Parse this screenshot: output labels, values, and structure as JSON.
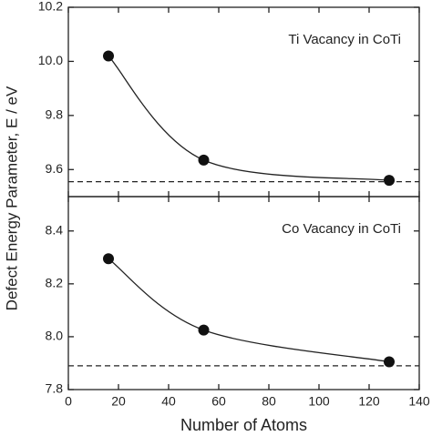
{
  "chart_data": [
    {
      "type": "scatter",
      "annotation": "Ti Vacancy in CoTi",
      "ylabel": "Defect Energy Parameter, E / eV",
      "x": [
        16,
        54,
        128
      ],
      "values": [
        10.02,
        9.635,
        9.56
      ],
      "color": "#111111",
      "asymptote": 9.555,
      "xlim": [
        0,
        140
      ],
      "xticks": [
        0,
        20,
        40,
        60,
        80,
        100,
        120,
        140
      ],
      "ylim": [
        9.5,
        10.2
      ],
      "yticks": [
        9.6,
        9.8,
        {
          "value": 10,
          "label": "10.0"
        },
        10.2
      ]
    },
    {
      "type": "scatter",
      "annotation": "Co Vacancy in CoTi",
      "xlabel": "Number of Atoms",
      "x": [
        16,
        54,
        128
      ],
      "values": [
        8.295,
        8.025,
        7.905
      ],
      "color": "#111111",
      "asymptote": 7.89,
      "xlim": [
        0,
        140
      ],
      "xticks": [
        0,
        20,
        40,
        60,
        80,
        100,
        120,
        140
      ],
      "ylim": [
        7.8,
        8.53
      ],
      "yticks": [
        7.8,
        {
          "value": 8,
          "label": "8.0"
        },
        8.2,
        8.4
      ]
    }
  ]
}
